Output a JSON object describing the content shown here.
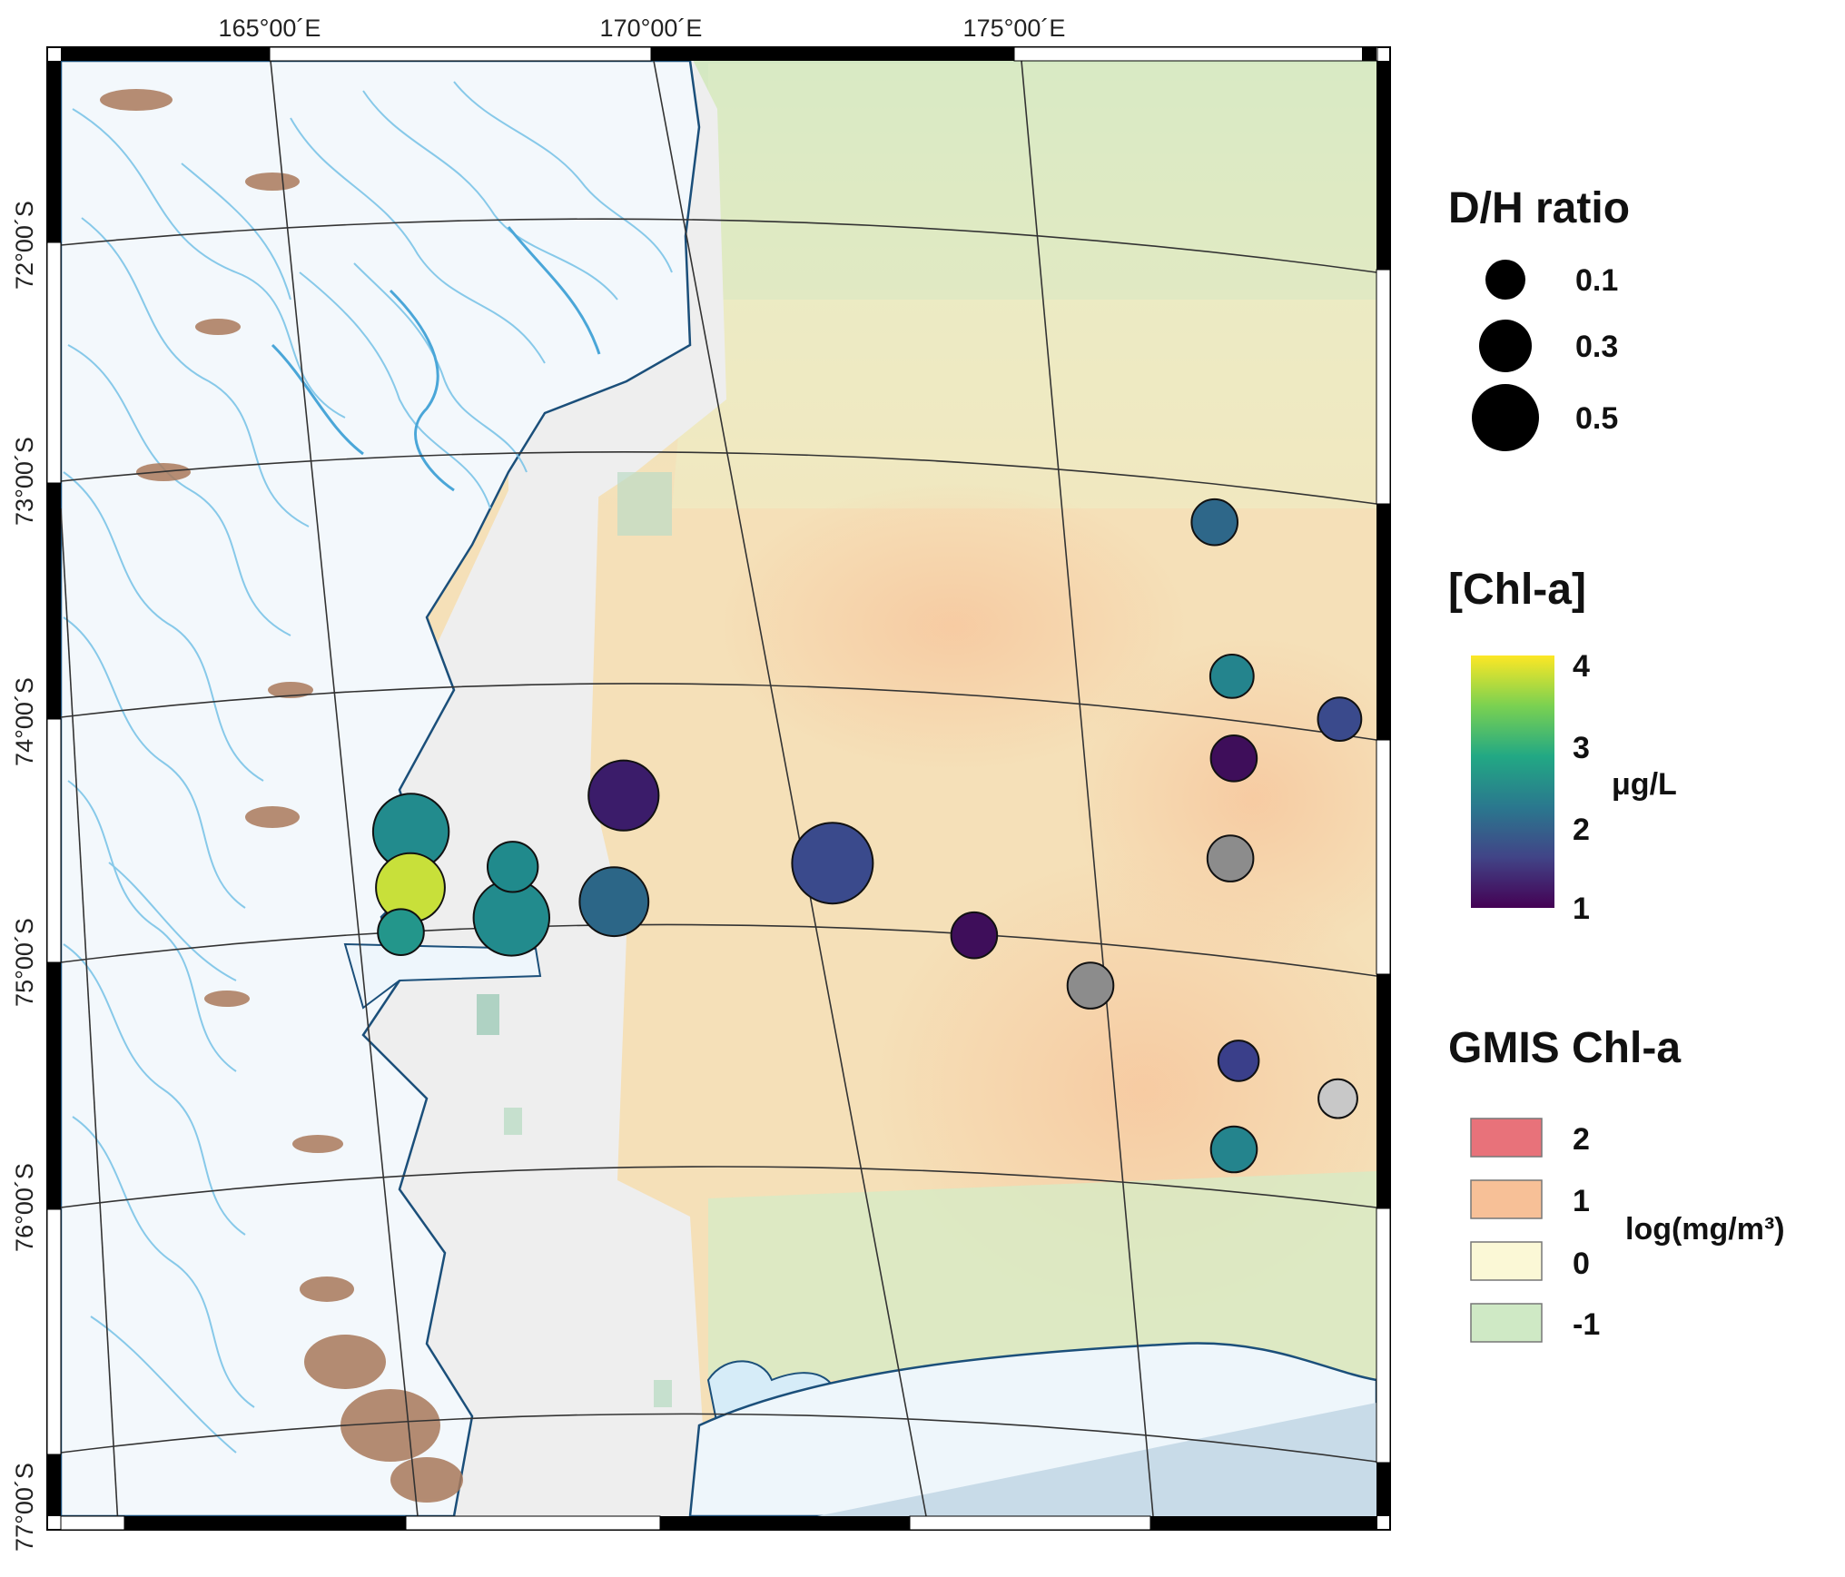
{
  "map": {
    "lon_labels": [
      "165°00´E",
      "170°00´E",
      "175°00´E"
    ],
    "lat_labels": [
      "72°00´S",
      "73°00´S",
      "74°00´S",
      "75°00´S",
      "76°00´S",
      "77°00´S"
    ]
  },
  "legend_dh": {
    "title": "D/H ratio",
    "items": [
      {
        "label": "0.1",
        "ratio": 0.1
      },
      {
        "label": "0.3",
        "ratio": 0.3
      },
      {
        "label": "0.5",
        "ratio": 0.5
      }
    ]
  },
  "legend_chl": {
    "title": "[Chl-a]",
    "ticks": [
      "4",
      "3",
      "2",
      "1"
    ],
    "unit": "μg/L",
    "colormap": [
      "#fde725",
      "#7ad151",
      "#22a884",
      "#2a788e",
      "#414487",
      "#440154"
    ]
  },
  "legend_gmis": {
    "title": "GMIS Chl-a",
    "unit": "log(mg/m³)",
    "items": [
      {
        "label": "2",
        "color": "#e8727a"
      },
      {
        "label": "1",
        "color": "#f7c097"
      },
      {
        "label": "0",
        "color": "#fbf8d6"
      },
      {
        "label": "-1",
        "color": "#cfe9c5"
      }
    ]
  },
  "stations": [
    {
      "lon": 165.9,
      "lat": 74.45,
      "dh": 0.5,
      "chla": 2.6,
      "color": "#228b8d"
    },
    {
      "lon": 165.8,
      "lat": 74.68,
      "dh": 0.38,
      "chla": 3.8,
      "color": "#c8e03a"
    },
    {
      "lon": 165.6,
      "lat": 74.86,
      "dh": 0.1,
      "chla": 2.8,
      "color": "#23968b"
    },
    {
      "lon": 167.2,
      "lat": 74.62,
      "dh": 0.14,
      "chla": 2.5,
      "color": "#208a8c"
    },
    {
      "lon": 167.1,
      "lat": 74.83,
      "dh": 0.5,
      "chla": 2.5,
      "color": "#228b8d"
    },
    {
      "lon": 168.8,
      "lat": 74.34,
      "dh": 0.4,
      "chla": 1.2,
      "color": "#3b1c6a"
    },
    {
      "lon": 168.5,
      "lat": 74.78,
      "dh": 0.38,
      "chla": 2.0,
      "color": "#2c6687"
    },
    {
      "lon": 171.5,
      "lat": 74.62,
      "dh": 0.6,
      "chla": 1.6,
      "color": "#3a4a8c"
    },
    {
      "lon": 173.3,
      "lat": 74.9,
      "dh": 0.1,
      "chla": 1.1,
      "color": "#3e0e5a"
    },
    {
      "lon": 177.2,
      "lat": 73.05,
      "dh": 0.1,
      "chla": 2.1,
      "color": "#2e6789"
    },
    {
      "lon": 177.2,
      "lat": 73.7,
      "dh": 0.08,
      "chla": 2.4,
      "color": "#24848d"
    },
    {
      "lon": 178.6,
      "lat": 73.82,
      "dh": 0.08,
      "chla": 1.6,
      "color": "#3a4a8c"
    },
    {
      "lon": 177.1,
      "lat": 74.05,
      "dh": 0.1,
      "chla": 1.1,
      "color": "#3e0e5a"
    },
    {
      "lon": 176.9,
      "lat": 74.48,
      "dh": 0.1,
      "chla": null,
      "color": "#8c8c8c"
    },
    {
      "lon": 174.8,
      "lat": 75.08,
      "dh": 0.1,
      "chla": null,
      "color": "#8c8c8c"
    },
    {
      "lon": 176.7,
      "lat": 75.34,
      "dh": 0.06,
      "chla": 1.5,
      "color": "#3a3f8a"
    },
    {
      "lon": 178.0,
      "lat": 75.45,
      "dh": 0.05,
      "chla": null,
      "color": "#c8c8c8"
    },
    {
      "lon": 179.3,
      "lat": 75.55,
      "dh": 0.05,
      "chla": 1.5,
      "color": "#3a3f8a"
    },
    {
      "lon": 176.5,
      "lat": 75.72,
      "dh": 0.1,
      "chla": 2.4,
      "color": "#24848d"
    }
  ]
}
